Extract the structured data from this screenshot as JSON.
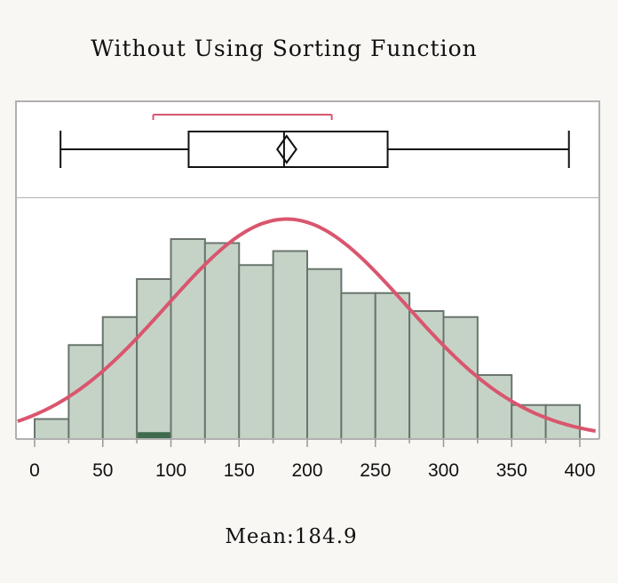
{
  "title": "Without Using Sorting Function",
  "mean_label": "Mean:184.9",
  "colors": {
    "bar_fill": "#c5d3c7",
    "bar_stroke": "#6a756d",
    "normal_curve": "#d9566e",
    "shortest_half_bracket": "#d9566e",
    "box_stroke": "#111111",
    "panel_border": "#b0b0b0",
    "selection_highlight": "#3f6b4c"
  },
  "chart_data": {
    "type": "bar",
    "subtype": "histogram with box plot and fitted normal curve",
    "x_ticks": [
      0,
      50,
      100,
      150,
      200,
      250,
      300,
      350,
      400
    ],
    "xlim": [
      -12.5,
      412.5
    ],
    "ylim": [
      0,
      1
    ],
    "bin_width": 25,
    "bins": [
      {
        "start": 0,
        "end": 25,
        "height": 0.1
      },
      {
        "start": 25,
        "end": 50,
        "height": 0.47
      },
      {
        "start": 50,
        "end": 75,
        "height": 0.61
      },
      {
        "start": 75,
        "end": 100,
        "height": 0.8
      },
      {
        "start": 100,
        "end": 125,
        "height": 1.0
      },
      {
        "start": 125,
        "end": 150,
        "height": 0.98
      },
      {
        "start": 150,
        "end": 175,
        "height": 0.87
      },
      {
        "start": 175,
        "end": 200,
        "height": 0.94
      },
      {
        "start": 200,
        "end": 225,
        "height": 0.85
      },
      {
        "start": 225,
        "end": 250,
        "height": 0.73
      },
      {
        "start": 250,
        "end": 275,
        "height": 0.73
      },
      {
        "start": 275,
        "end": 300,
        "height": 0.64
      },
      {
        "start": 300,
        "end": 325,
        "height": 0.61
      },
      {
        "start": 325,
        "end": 350,
        "height": 0.32
      },
      {
        "start": 350,
        "end": 375,
        "height": 0.17
      },
      {
        "start": 375,
        "end": 400,
        "height": 0.17
      }
    ],
    "selected_bin_start": 75,
    "selected_fraction": 0.03,
    "normal_curve": {
      "mean": 184.9,
      "sd": 88,
      "peak_height": 1.1
    },
    "box_plot": {
      "whisker_low": 19,
      "q1": 113,
      "median": 183,
      "q3": 259,
      "whisker_high": 392,
      "mean": 184.9,
      "mean_ci": [
        178,
        192
      ],
      "shortest_half": [
        87,
        218
      ]
    },
    "grid": false,
    "legend": "none"
  }
}
